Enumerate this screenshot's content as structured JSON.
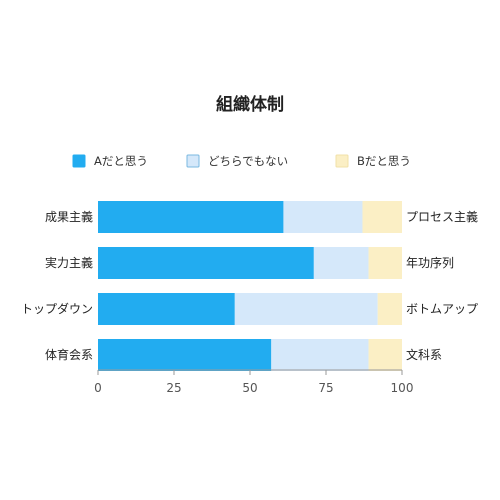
{
  "chart_data": {
    "type": "bar",
    "orientation": "horizontal",
    "stacked": true,
    "title": "組織体制",
    "categories": [
      "成果主義",
      "実力主義",
      "トップダウン",
      "体育会系"
    ],
    "right_labels": [
      "プロセス主義",
      "年功序列",
      "ボトムアップ",
      "文科系"
    ],
    "series": [
      {
        "name": "Aだと思う",
        "values": [
          61,
          71,
          45,
          57
        ],
        "color": "#22acf0"
      },
      {
        "name": "どちらでもない",
        "values": [
          26,
          18,
          47,
          32
        ],
        "color": "#d5e8fa"
      },
      {
        "name": "Bだと思う",
        "values": [
          13,
          11,
          8,
          11
        ],
        "color": "#fbefc5"
      }
    ],
    "xlim": [
      0,
      100
    ],
    "xticks": [
      0,
      25,
      50,
      75,
      100
    ],
    "legend_position": "top",
    "grid": false
  }
}
